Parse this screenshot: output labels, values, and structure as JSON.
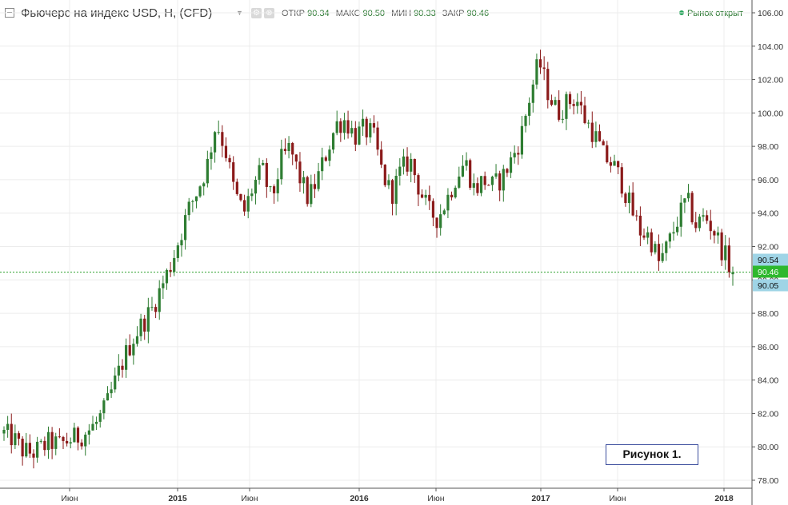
{
  "header": {
    "symbol_title": "Фьючерс на индекс USD, Н, (CFD)",
    "ohlc": {
      "open_label": "ОТКР",
      "open": "90.34",
      "high_label": "МАКС",
      "high": "90.50",
      "low_label": "МИН",
      "low": "90.33",
      "close_label": "ЗАКР",
      "close": "90.46"
    },
    "market_status": "Рынок открыт"
  },
  "figure_label": "Рисунок 1.",
  "colors": {
    "up": "#2e7d32",
    "down": "#8b1a1a",
    "grid": "#ececec",
    "axis_text": "#333333",
    "price_line": "#2ca02c",
    "tag_blue": "#9fd4e6",
    "tag_green": "#2eb82e"
  },
  "chart_data": {
    "type": "candlestick",
    "timeframe": "weekly",
    "x_start": "2014-02",
    "x_end": "2018-01",
    "ylim": [
      78,
      106
    ],
    "y_ticks": [
      "78.00",
      "80.00",
      "82.00",
      "84.00",
      "86.00",
      "88.00",
      "90.00",
      "92.00",
      "94.00",
      "96.00",
      "98.00",
      "100.00",
      "102.00",
      "104.00",
      "106.00"
    ],
    "x_ticks": [
      "Июн",
      "2015",
      "Июн",
      "2016",
      "Июн",
      "2017",
      "Июн",
      "2018"
    ],
    "price_tags": [
      {
        "label": "90.54",
        "value": 90.54,
        "kind": "blue"
      },
      {
        "label": "90.46",
        "value": 90.46,
        "kind": "green"
      },
      {
        "label": "90.05",
        "value": 90.05,
        "kind": "blue"
      }
    ],
    "current_price": 90.46,
    "close_path": [
      80.8,
      80.5,
      79.8,
      79.6,
      79.9,
      80.3,
      80.1,
      80.4,
      80.6,
      80.9,
      81.4,
      82.3,
      83.8,
      85.3,
      86.5,
      87.4,
      88.2,
      89.5,
      90.8,
      92.5,
      94.2,
      95.4,
      96.8,
      99.5,
      97.8,
      95.2,
      94.0,
      95.6,
      96.6,
      94.7,
      97.1,
      97.9,
      96.2,
      94.8,
      96.1,
      97.7,
      99.3,
      99.6,
      98.6,
      99.0,
      98.7,
      96.4,
      95.1,
      96.5,
      97.2,
      95.5,
      94.1,
      93.7,
      94.8,
      96.2,
      97.1,
      95.4,
      96.0,
      95.6,
      96.1,
      97.2,
      98.5,
      101.0,
      103.1,
      101.2,
      100.0,
      100.6,
      100.9,
      99.6,
      98.7,
      97.4,
      96.9,
      95.8,
      94.2,
      92.9,
      92.6,
      91.0,
      92.1,
      93.6,
      94.8,
      93.3,
      93.8,
      92.9,
      91.6,
      90.46
    ]
  }
}
